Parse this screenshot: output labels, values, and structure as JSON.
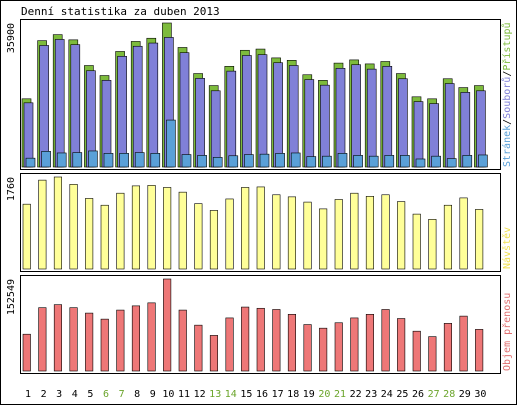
{
  "chart_data": [
    {
      "type": "bar",
      "title": "Denní statistika za duben 2013",
      "ymax_label": "35900",
      "ylim": [
        0,
        35900
      ],
      "legend": [
        {
          "text": "Přístupů",
          "color": "#7dbb3c"
        },
        {
          "text": "Souborů",
          "color": "#8080d8"
        },
        {
          "text": "Stránek",
          "color": "#5aa0d8"
        }
      ],
      "separators": [
        "/",
        "/"
      ],
      "separator_color": "#000000",
      "categories": [
        "1",
        "2",
        "3",
        "4",
        "5",
        "6",
        "7",
        "8",
        "9",
        "10",
        "11",
        "12",
        "13",
        "14",
        "15",
        "16",
        "17",
        "18",
        "19",
        "20",
        "21",
        "22",
        "23",
        "24",
        "25",
        "26",
        "27",
        "28",
        "29",
        "30"
      ],
      "weekend_days": [
        "6",
        "7",
        "13",
        "14",
        "20",
        "21",
        "27",
        "28"
      ],
      "series": [
        {
          "name": "Přístupů",
          "color": "#7dbb3c",
          "values": [
            17000,
            31500,
            33000,
            31700,
            25300,
            22800,
            28800,
            31300,
            32100,
            35900,
            29800,
            23300,
            20300,
            25100,
            29100,
            29400,
            27200,
            26600,
            23000,
            21600,
            25900,
            26700,
            25700,
            26300,
            23300,
            17500,
            17000,
            22000,
            19800,
            20300
          ]
        },
        {
          "name": "Souborů",
          "color": "#8080d8",
          "values": [
            16000,
            30300,
            31800,
            30500,
            24000,
            21600,
            27600,
            30100,
            30900,
            32300,
            28500,
            22100,
            19000,
            23900,
            27800,
            28000,
            26000,
            25300,
            21800,
            20400,
            24600,
            25500,
            24400,
            25100,
            22000,
            16300,
            15800,
            20800,
            18600,
            19000
          ]
        },
        {
          "name": "Stránek",
          "color": "#5aa0d8",
          "values": [
            2200,
            3900,
            3500,
            3600,
            4000,
            3400,
            3400,
            3600,
            3400,
            11700,
            3100,
            2900,
            2400,
            2800,
            3100,
            3200,
            3400,
            3500,
            2600,
            2700,
            3400,
            2900,
            2700,
            2900,
            2900,
            2000,
            2700,
            2100,
            2900,
            3000
          ]
        }
      ]
    },
    {
      "type": "bar",
      "ymax_label": "1760",
      "ylim": [
        0,
        1760
      ],
      "legend": [
        {
          "text": "Návštěv",
          "color": "#f0e050"
        }
      ],
      "categories": [
        "1",
        "2",
        "3",
        "4",
        "5",
        "6",
        "7",
        "8",
        "9",
        "10",
        "11",
        "12",
        "13",
        "14",
        "15",
        "16",
        "17",
        "18",
        "19",
        "20",
        "21",
        "22",
        "23",
        "24",
        "25",
        "26",
        "27",
        "28",
        "29",
        "30"
      ],
      "series": [
        {
          "name": "Návštěv",
          "color": "#ffff99",
          "values": [
            1240,
            1700,
            1760,
            1620,
            1350,
            1220,
            1450,
            1590,
            1600,
            1560,
            1470,
            1250,
            1120,
            1340,
            1560,
            1570,
            1420,
            1380,
            1280,
            1150,
            1330,
            1450,
            1390,
            1420,
            1290,
            1050,
            950,
            1220,
            1360,
            1140
          ]
        }
      ]
    },
    {
      "type": "bar",
      "ymax_label": "152549",
      "ylim": [
        0,
        152549
      ],
      "legend": [
        {
          "text": "Objem přenosu",
          "color": "#e07070"
        }
      ],
      "categories": [
        "1",
        "2",
        "3",
        "4",
        "5",
        "6",
        "7",
        "8",
        "9",
        "10",
        "11",
        "12",
        "13",
        "14",
        "15",
        "16",
        "17",
        "18",
        "19",
        "20",
        "21",
        "22",
        "23",
        "24",
        "25",
        "26",
        "27",
        "28",
        "29",
        "30"
      ],
      "series": [
        {
          "name": "Objem přenosu",
          "color": "#ee7777",
          "values": [
            61000,
            105000,
            110000,
            105000,
            96000,
            86000,
            101000,
            108000,
            113000,
            152549,
            101000,
            76000,
            59000,
            88000,
            106000,
            104000,
            102000,
            94000,
            77000,
            71000,
            80000,
            88000,
            94000,
            102000,
            87000,
            66000,
            57000,
            79000,
            91000,
            69000
          ]
        }
      ]
    }
  ]
}
